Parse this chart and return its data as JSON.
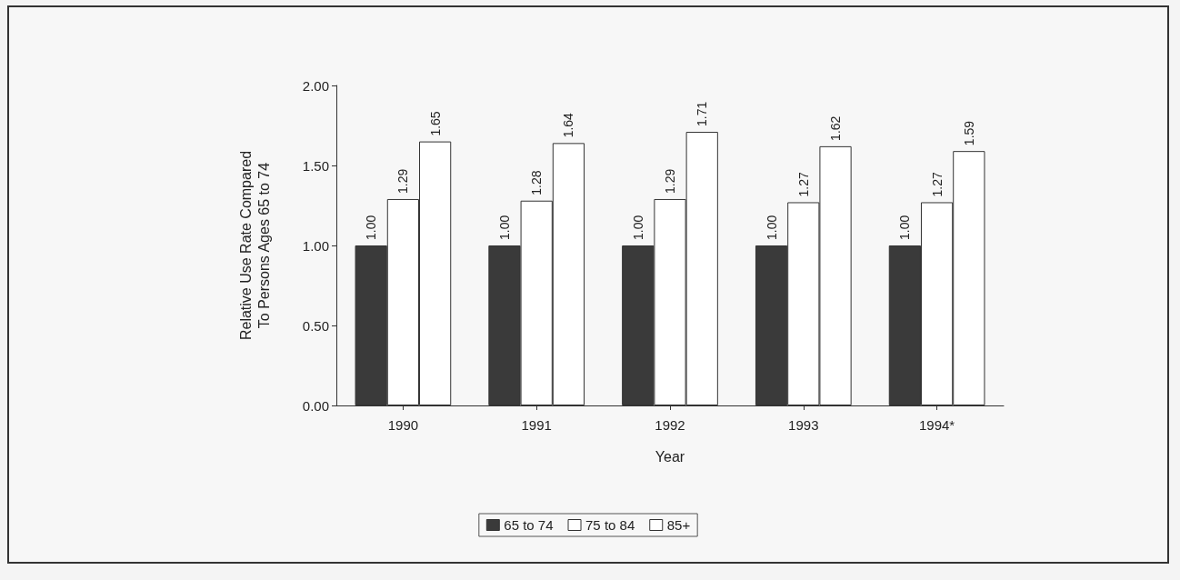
{
  "chart_data": {
    "type": "bar",
    "xlabel": "Year",
    "ylabel": "Relative Use Rate Compared\nTo Persons Ages 65 to 74",
    "categories": [
      "1990",
      "1991",
      "1992",
      "1993",
      "1994*"
    ],
    "series": [
      {
        "name": "65 to 74",
        "color": "#3a3a3a",
        "values": [
          1.0,
          1.0,
          1.0,
          1.0,
          1.0
        ],
        "value_labels": [
          "1.00",
          "1.00",
          "1.00",
          "1.00",
          "1.00"
        ]
      },
      {
        "name": "75 to 84",
        "color": "#ffffff",
        "values": [
          1.29,
          1.28,
          1.29,
          1.27,
          1.27
        ],
        "value_labels": [
          "1.29",
          "1.28",
          "1.29",
          "1.27",
          "1.27"
        ]
      },
      {
        "name": "85+",
        "color": "#ffffff",
        "values": [
          1.65,
          1.64,
          1.71,
          1.62,
          1.59
        ],
        "value_labels": [
          "1.65",
          "1.64",
          "1.71",
          "1.62",
          "1.59"
        ]
      }
    ],
    "ylim": [
      0,
      2
    ],
    "yticks": [
      {
        "value": 0,
        "label": "0.00"
      },
      {
        "value": 0.5,
        "label": "0.50"
      },
      {
        "value": 1,
        "label": "1.00"
      },
      {
        "value": 1.5,
        "label": "1.50"
      },
      {
        "value": 2,
        "label": "2.00"
      }
    ],
    "grid": false,
    "legend": "bottom"
  }
}
